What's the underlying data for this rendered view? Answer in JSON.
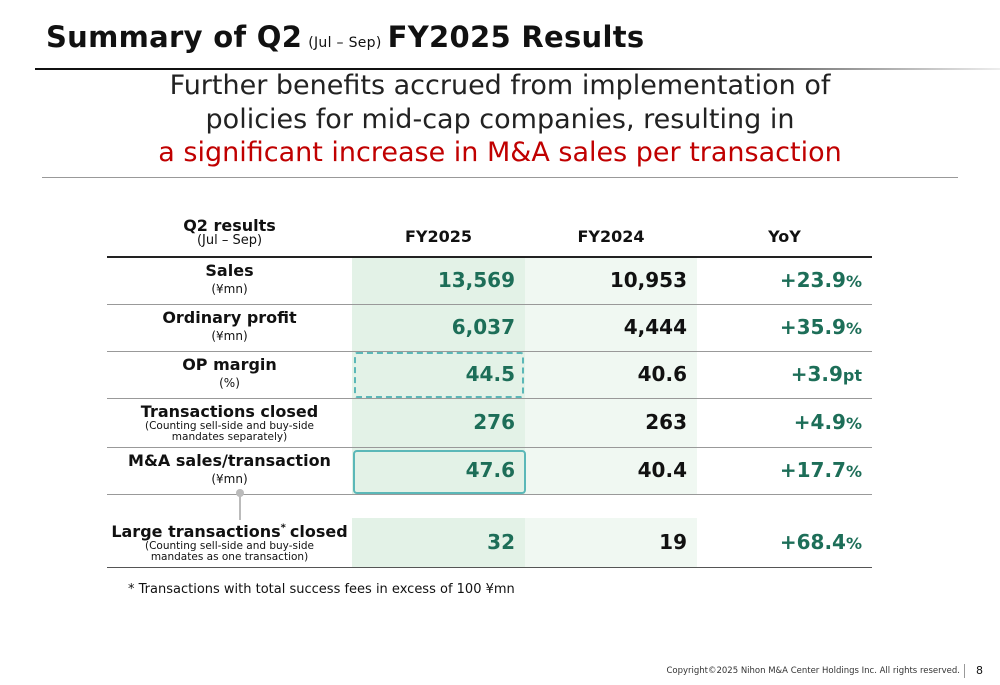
{
  "header": {
    "title_main": "Summary of Q2",
    "title_period": "(Jul – Sep)",
    "title_end": "FY2025 Results"
  },
  "headline": {
    "line1": "Further benefits accrued from implementation of",
    "line2": "policies for mid-cap companies, resulting in",
    "line3": "a significant increase in M&A sales per transaction"
  },
  "table": {
    "header": {
      "label": "Q2 results",
      "sublabel": "(Jul – Sep)",
      "columns": [
        "FY2025",
        "FY2024",
        "YoY"
      ]
    },
    "rows": [
      {
        "label": "Sales",
        "sublabel": "(¥mn)",
        "fy2025": "13,569",
        "fy2024": "10,953",
        "yoy": "+23.9",
        "yoy_unit": "%"
      },
      {
        "label": "Ordinary profit",
        "sublabel": "(¥mn)",
        "fy2025": "6,037",
        "fy2024": "4,444",
        "yoy": "+35.9",
        "yoy_unit": "%"
      },
      {
        "label": "OP margin",
        "sublabel": "(%)",
        "fy2025": "44.5",
        "fy2024": "40.6",
        "yoy": "+3.9",
        "yoy_unit": "pt"
      },
      {
        "label": "Transactions closed",
        "sublabel": "(Counting sell-side and buy-side mandates separately)",
        "fy2025": "276",
        "fy2024": "263",
        "yoy": "+4.9",
        "yoy_unit": "%"
      },
      {
        "label": "M&A sales/transaction",
        "sublabel": "(¥mn)",
        "fy2025": "47.6",
        "fy2024": "40.4",
        "yoy": "+17.7",
        "yoy_unit": "%"
      },
      {
        "label": "Large transactions",
        "label_note": "*",
        "label_end": "closed",
        "sublabel": "(Counting sell-side and buy-side mandates as one transaction)",
        "fy2025": "32",
        "fy2024": "19",
        "yoy": "+68.4",
        "yoy_unit": "%"
      }
    ]
  },
  "footnote": {
    "mark": "*",
    "text": "Transactions with total success fees in excess of 100 ¥mn"
  },
  "footer": {
    "copyright": "Copyright©2025 Nihon M&A Center Holdings Inc. All rights reserved.",
    "page": "8"
  }
}
